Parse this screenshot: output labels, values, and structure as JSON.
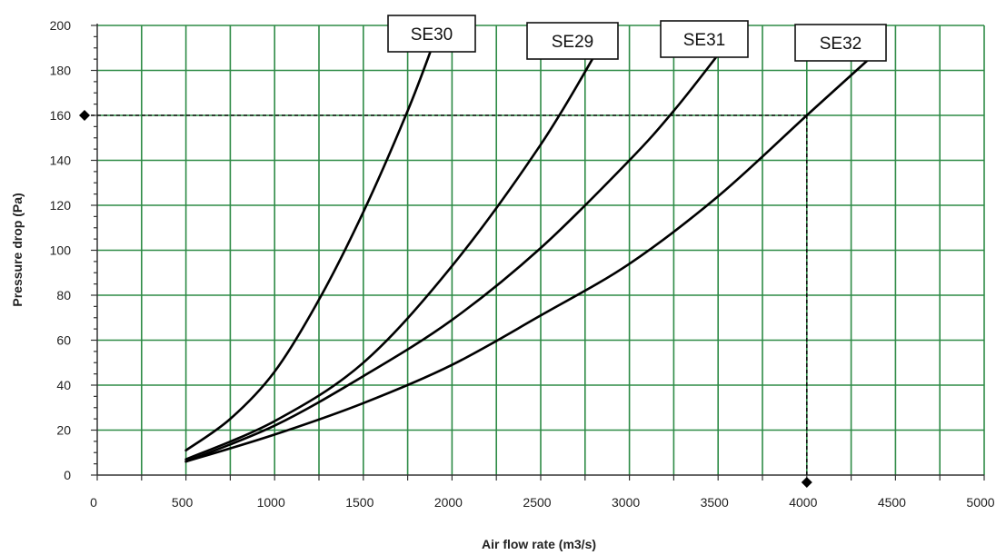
{
  "chart_data": {
    "type": "line",
    "title": "",
    "xlabel": "Air flow rate (m3/s)",
    "ylabel": "Pressure drop (Pa)",
    "xlim": [
      0,
      5000
    ],
    "ylim": [
      0,
      200
    ],
    "x_ticks": [
      0,
      500,
      1000,
      1500,
      2000,
      2500,
      3000,
      3500,
      4000,
      4500,
      5000
    ],
    "x_tick_labels": [
      "0",
      "500",
      "1000",
      "1500",
      "2000",
      "2500",
      "3000",
      "3500",
      "4000",
      "4500",
      "5000"
    ],
    "y_ticks": [
      0,
      20,
      40,
      60,
      80,
      100,
      120,
      140,
      160,
      180,
      200
    ],
    "y_tick_labels": [
      "0",
      "20",
      "40",
      "60",
      "80",
      "100",
      "120",
      "140",
      "160",
      "180",
      "200"
    ],
    "grid": true,
    "grid_color": "#2e8b46",
    "line_color": "#000000",
    "series": [
      {
        "name": "SE30",
        "points": [
          [
            500,
            11
          ],
          [
            750,
            25
          ],
          [
            1000,
            46
          ],
          [
            1250,
            78
          ],
          [
            1500,
            117
          ],
          [
            1750,
            162
          ],
          [
            1900,
            193
          ]
        ]
      },
      {
        "name": "SE29",
        "points": [
          [
            500,
            7
          ],
          [
            1000,
            24
          ],
          [
            1500,
            50
          ],
          [
            2000,
            93
          ],
          [
            2500,
            147
          ],
          [
            2850,
            193
          ]
        ]
      },
      {
        "name": "SE31",
        "points": [
          [
            500,
            6
          ],
          [
            1000,
            22
          ],
          [
            1500,
            44
          ],
          [
            2000,
            69
          ],
          [
            2500,
            101
          ],
          [
            3000,
            140
          ],
          [
            3250,
            162
          ],
          [
            3500,
            187
          ]
        ]
      },
      {
        "name": "SE32",
        "points": [
          [
            500,
            6
          ],
          [
            1000,
            18
          ],
          [
            1500,
            32
          ],
          [
            2000,
            49
          ],
          [
            2500,
            71
          ],
          [
            3000,
            94
          ],
          [
            3500,
            124
          ],
          [
            4000,
            160
          ],
          [
            4350,
            185
          ]
        ]
      }
    ],
    "reference": {
      "x": 4000,
      "y": 160,
      "style": "dashed"
    }
  }
}
